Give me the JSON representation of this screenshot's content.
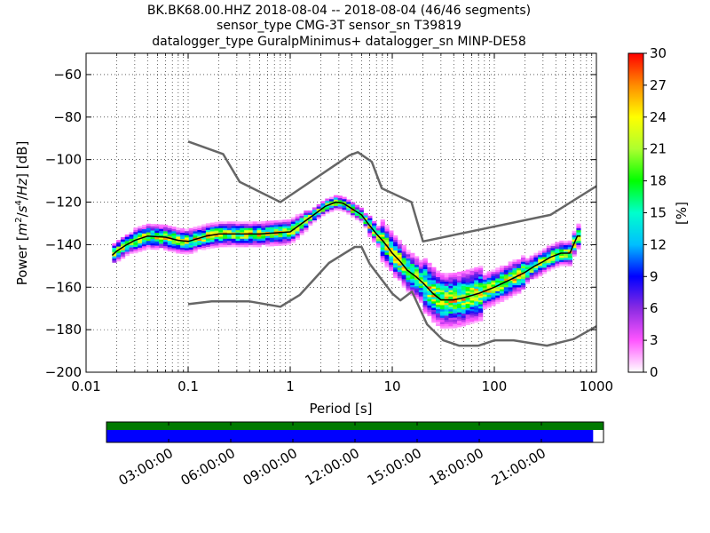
{
  "title_lines": [
    "BK.BK68.00.HHZ   2018-08-04 -- 2018-08-04  (46/46 segments)",
    "sensor_type CMG-3T sensor_sn T39819",
    "datalogger_type GuralpMinimus+ datalogger_sn MINP-DE58"
  ],
  "chart_data": {
    "type": "heatmap",
    "xlabel": "Period [s]",
    "ylabel_parts": [
      "Power [",
      "m",
      "2",
      "/",
      "s",
      "4",
      "/",
      "Hz",
      "] [dB]"
    ],
    "xscale": "log",
    "xlim": [
      0.01,
      1000
    ],
    "ylim": [
      -200,
      -50
    ],
    "x_ticks": [
      0.01,
      0.1,
      1,
      10,
      100,
      1000
    ],
    "x_tick_labels": [
      "0.01",
      "0.1",
      "1",
      "10",
      "100",
      "1000"
    ],
    "y_ticks": [
      -200,
      -180,
      -160,
      -140,
      -120,
      -100,
      -80,
      -60
    ],
    "y_tick_labels": [
      "−200",
      "−180",
      "−160",
      "−140",
      "−120",
      "−100",
      "−80",
      "−60"
    ],
    "grid": true,
    "noise_models": {
      "high": {
        "period": [
          0.1,
          0.22,
          0.32,
          0.8,
          3.8,
          4.6,
          6.3,
          7.9,
          15.4,
          20,
          354.8,
          1000
        ],
        "power": [
          -91.5,
          -97.4,
          -110.5,
          -120,
          -98,
          -96.5,
          -101,
          -113.5,
          -120,
          -138.5,
          -126,
          -112.5
        ]
      },
      "low": {
        "period": [
          0.1,
          0.17,
          0.4,
          0.8,
          1.24,
          2.4,
          4.3,
          5,
          6,
          10,
          12,
          15.6,
          21.9,
          31.6,
          45,
          70,
          101,
          154,
          328,
          600,
          1000
        ],
        "power": [
          -168,
          -166.7,
          -166.7,
          -169.2,
          -163.7,
          -148.6,
          -141.1,
          -141.1,
          -149,
          -163,
          -166.2,
          -162.1,
          -177.5,
          -185,
          -187.5,
          -187.5,
          -185,
          -185,
          -187.5,
          -184.4,
          -178.4
        ]
      }
    },
    "mode_curve": {
      "period": [
        0.018,
        0.02,
        0.025,
        0.03,
        0.04,
        0.06,
        0.08,
        0.1,
        0.15,
        0.2,
        0.3,
        0.5,
        0.7,
        1,
        1.3,
        1.7,
        2.2,
        2.8,
        3.3,
        4,
        5,
        6,
        7,
        8,
        9,
        10,
        12,
        14,
        17,
        20,
        25,
        30,
        40,
        50,
        70,
        100,
        150,
        200,
        250,
        300,
        350,
        450,
        550,
        650,
        700
      ],
      "power": [
        -145,
        -143,
        -140,
        -138,
        -136,
        -136.5,
        -138,
        -138.5,
        -136,
        -135,
        -135,
        -135,
        -134.5,
        -134,
        -130,
        -126,
        -122,
        -120,
        -120.5,
        -123,
        -126,
        -131,
        -135,
        -138,
        -141,
        -144,
        -148,
        -152,
        -155,
        -158,
        -163,
        -166,
        -166,
        -165,
        -163,
        -160,
        -156,
        -153,
        -150,
        -148,
        -146,
        -144,
        -144,
        -136,
        -136
      ]
    },
    "colorbar": {
      "label": "[%]",
      "min": 0,
      "max": 30,
      "tick_values": [
        0,
        3,
        6,
        9,
        12,
        15,
        18,
        21,
        24,
        27,
        30
      ],
      "tick_labels": [
        "0",
        "3",
        "6",
        "9",
        "12",
        "15",
        "18",
        "21",
        "24",
        "27",
        "30"
      ],
      "stops": [
        {
          "value": 0,
          "color": "#ffffff"
        },
        {
          "value": 3,
          "color": "#ff55ff"
        },
        {
          "value": 6,
          "color": "#8a2be2"
        },
        {
          "value": 9,
          "color": "#0000ff"
        },
        {
          "value": 12,
          "color": "#00bfff"
        },
        {
          "value": 15,
          "color": "#00ffcc"
        },
        {
          "value": 18,
          "color": "#00ff00"
        },
        {
          "value": 21,
          "color": "#adff2f"
        },
        {
          "value": 24,
          "color": "#ffff00"
        },
        {
          "value": 27,
          "color": "#ff8c00"
        },
        {
          "value": 30,
          "color": "#ff0000"
        }
      ]
    },
    "coverage": {
      "time_range_hours": [
        0,
        24
      ],
      "green_bar": [
        0,
        24
      ],
      "blue_bar": [
        0,
        23.5
      ],
      "tick_hours": [
        3,
        6,
        9,
        12,
        15,
        18,
        21
      ],
      "tick_labels": [
        "03:00:00",
        "06:00:00",
        "09:00:00",
        "12:00:00",
        "15:00:00",
        "18:00:00",
        "21:00:00"
      ],
      "colors": {
        "green": "#007a00",
        "blue": "#0000ff"
      }
    },
    "colors": {
      "noise_model": "#666666",
      "mode": "#000000"
    }
  }
}
